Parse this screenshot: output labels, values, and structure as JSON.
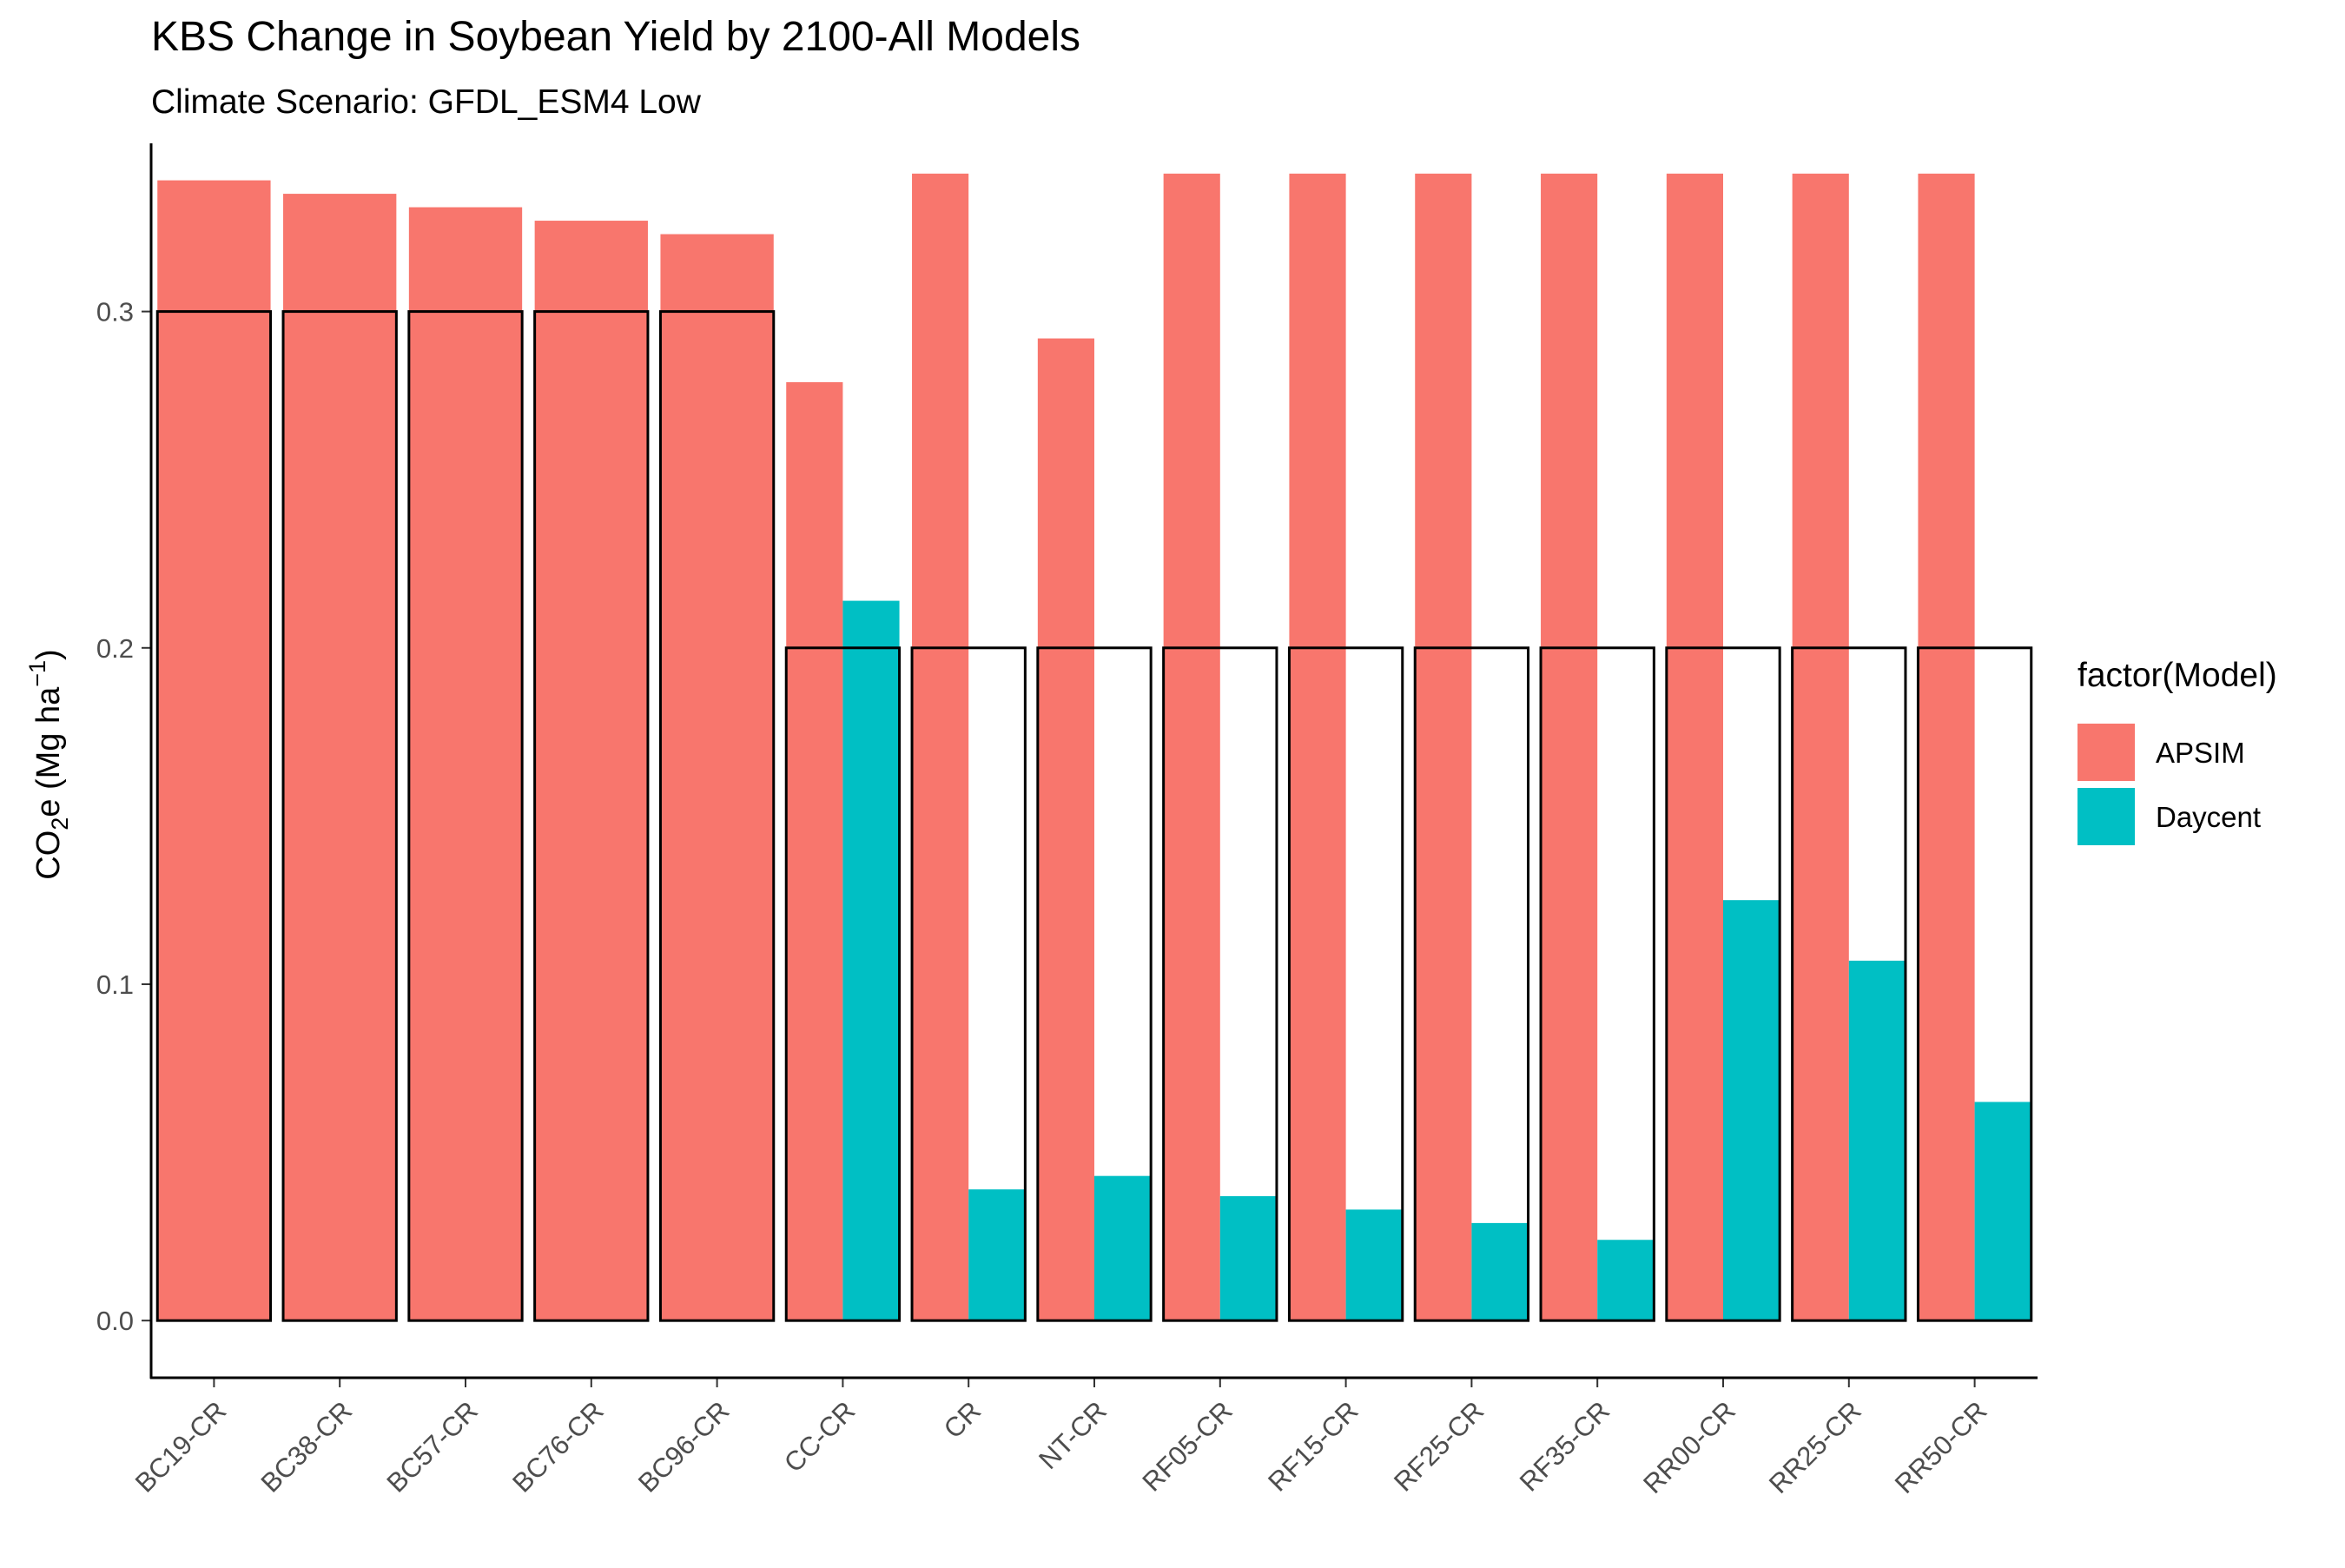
{
  "chart_data": {
    "type": "bar",
    "title": "KBS Change in Soybean Yield by 2100-All Models",
    "subtitle": "Climate Scenario: GFDL_ESM4 Low",
    "ylabel": {
      "prefix": "CO",
      "sub": "2",
      "middle": "e (Mg ha",
      "sup": "−1",
      "suffix": ")"
    },
    "xlabel": "",
    "ylim": [
      -0.017,
      0.35
    ],
    "yticks": [
      0.0,
      0.1,
      0.2,
      0.3
    ],
    "ytick_labels": [
      "0.0",
      "0.1",
      "0.2",
      "0.3"
    ],
    "categories": [
      "BC19-CR",
      "BC38-CR",
      "BC57-CR",
      "BC76-CR",
      "BC96-CR",
      "CC-CR",
      "CR",
      "NT-CR",
      "RF05-CR",
      "RF15-CR",
      "RF25-CR",
      "RF35-CR",
      "RR00-CR",
      "RR25-CR",
      "RR50-CR"
    ],
    "series": [
      {
        "name": "APSIM",
        "color": "#F8766D",
        "values": [
          0.339,
          0.335,
          0.331,
          0.327,
          0.323,
          0.279,
          0.341,
          0.292,
          0.341,
          0.341,
          0.341,
          0.341,
          0.341,
          0.341,
          0.341
        ]
      },
      {
        "name": "Daycent",
        "color": "#00BFC4",
        "values": [
          null,
          null,
          null,
          null,
          null,
          0.214,
          0.039,
          0.043,
          0.037,
          0.033,
          0.029,
          0.024,
          0.125,
          0.107,
          0.065
        ]
      }
    ],
    "observed": {
      "values": [
        0.3,
        0.3,
        0.3,
        0.3,
        0.3,
        0.2,
        0.2,
        0.2,
        0.2,
        0.2,
        0.2,
        0.2,
        0.2,
        0.2,
        0.2
      ],
      "outline_color": "#000000"
    },
    "legend": {
      "title": "factor(Model)",
      "position": "right",
      "entries": [
        "APSIM",
        "Daycent"
      ]
    },
    "grid": false
  }
}
